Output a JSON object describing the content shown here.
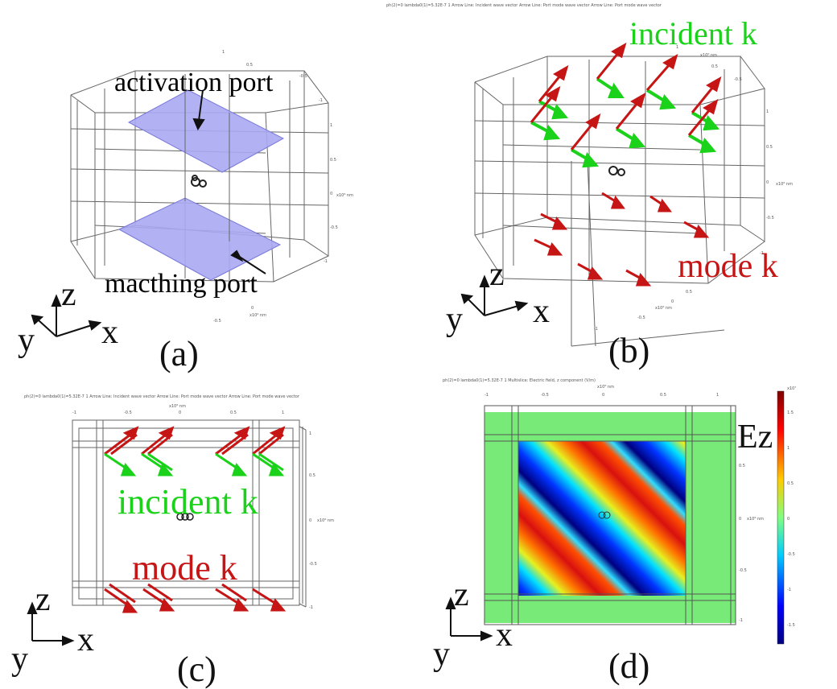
{
  "panels": [
    {
      "id": "a",
      "label": "(a)",
      "annotations": {
        "top": "activation port",
        "bottom": "macthing port"
      },
      "axes": {
        "z": "z",
        "y": "y",
        "x": "x"
      },
      "tiny_ticks": [
        "1",
        "0.5",
        "-0.5",
        "-1",
        "1",
        "0.5",
        "0",
        "-0.5",
        "-1",
        "0",
        "-0.5"
      ],
      "tiny_unit": "x10⁶ nm"
    },
    {
      "id": "b",
      "label": "(b)",
      "header": "ph(2)=0  lambda0(1)=5.32E-7 1          Arrow Line: Incident wave vector  Arrow Line: Port mode wave vector  Arrow Line: Port mode wave vector",
      "annotations": {
        "top": "incident k",
        "bottom": "mode k"
      },
      "axes": {
        "z": "z",
        "y": "y",
        "x": "x"
      },
      "tiny_ticks": [
        "1",
        "0.5",
        "-0.5",
        "1",
        "0.5",
        "0",
        "-0.5",
        "-1",
        "0",
        "0.5",
        "-0.5",
        "-1"
      ],
      "tiny_unit": "x10⁶ nm"
    },
    {
      "id": "c",
      "label": "(c)",
      "header": "ph(2)=0  lambda0(1)=5.32E-7 1          Arrow Line: Incident wave vector  Arrow Line: Port mode wave vector  Arrow Line: Port mode wave vector",
      "annotations": {
        "top": "incident k",
        "bottom": "mode k"
      },
      "axes": {
        "z": "z",
        "y": "y",
        "x": "x"
      },
      "tiny_ticks": [
        "-1",
        "-0.5",
        "0",
        "0.5",
        "1",
        "1",
        "0.5",
        "0",
        "-0.5",
        "-1"
      ],
      "tiny_unit": "x10⁶ nm"
    },
    {
      "id": "d",
      "label": "(d)",
      "header": "ph(2)=0  lambda0(1)=5.32E-7 1          Multislice: Electric field, z component (V/m)",
      "annotations": {
        "right": "Ez"
      },
      "axes": {
        "z": "z",
        "y": "y",
        "x": "x"
      },
      "tiny_ticks": [
        "-1",
        "-0.5",
        "0",
        "0.5",
        "1",
        "0.5",
        "0",
        "-0.5",
        "-1"
      ],
      "tiny_unit": "x10⁶ nm",
      "colorbar": {
        "unit": "x10⁷",
        "ticks": [
          "1.5",
          "1",
          "0.5",
          "0",
          "-0.5",
          "-1",
          "-1.5"
        ]
      }
    }
  ],
  "colors": {
    "incident": "#1bd21b",
    "mode": "#c61515",
    "port": "#a9a9f2",
    "field_bg": "#77ea77",
    "frame": "#555555"
  }
}
